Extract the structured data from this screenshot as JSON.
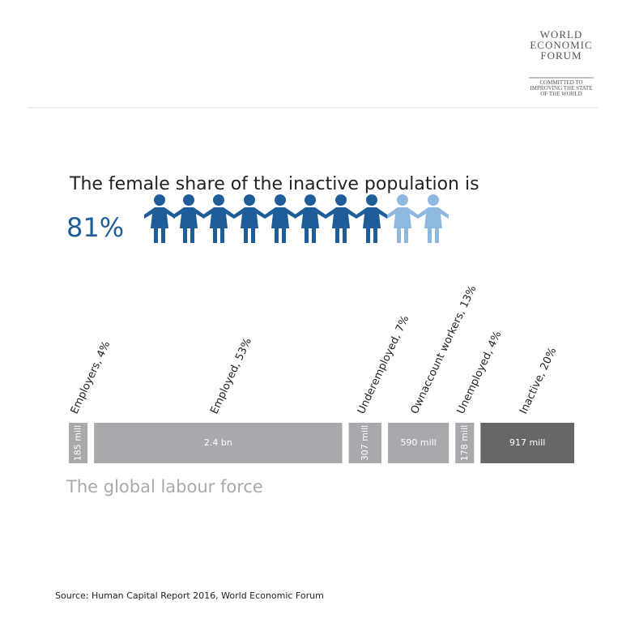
{
  "logo": {
    "lines": [
      "WORLD",
      "ECONOMIC",
      "FORUM"
    ],
    "tagline": [
      "COMMITTED TO",
      "IMPROVING THE STATE",
      "OF THE WORLD"
    ]
  },
  "headline": "The female share of the inactive population is",
  "share": {
    "value": 81,
    "label": "81%"
  },
  "chart_data": {
    "type": "bar",
    "subtitle": "The global labour force",
    "categories": [
      "Employers, 4%",
      "Employed, 53%",
      "Underemployed, 7%",
      "Ownaccount  workers, 13%",
      "Unemployed, 4%",
      "Inactive, 20%"
    ],
    "values": [
      4,
      53,
      7,
      13,
      4,
      20
    ],
    "counts": [
      185000000,
      2400000000,
      307000000,
      590000000,
      178000000,
      917000000
    ],
    "count_labels": [
      "185 mill",
      "2.4 bn",
      "307 mill",
      "590 mill",
      "178 mill",
      "917 mill"
    ],
    "colors": [
      "#a7a9ac",
      "#a7a9ac",
      "#a7a9ac",
      "#a7a9ac",
      "#a7a9ac",
      "#666768"
    ]
  },
  "source": "Source: Human Capital Report 2016, World Economic Forum"
}
